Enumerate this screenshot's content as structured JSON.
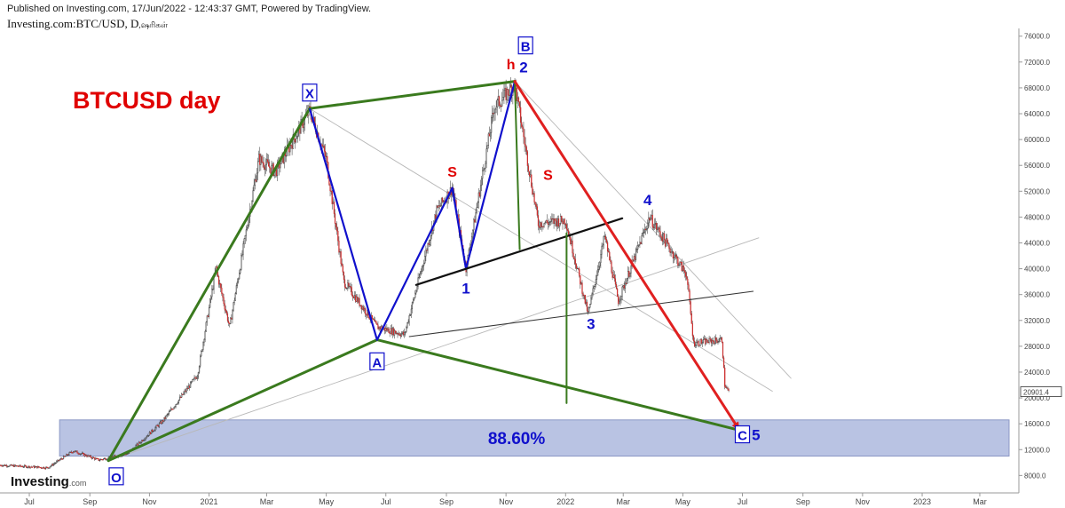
{
  "header": {
    "published": "Published on Investing.com, 17/Jun/2022 - 12:43:37 GMT, Powered by TradingView.",
    "symbol": "Investing.com:BTC/USD, D",
    "symbol_suffix": ",ஷரிகள்"
  },
  "branding": {
    "logo_text": "Investing",
    "logo_suffix": ".com"
  },
  "colors": {
    "harmonic": "#3a7a1e",
    "wave": "#1010cc",
    "title": "#e00000",
    "drop_line": "#e02020",
    "neckline": "#111111",
    "zone_fill": "#b9c3e3",
    "candle_up": "#2a8a3a",
    "candle_down": "#cc2a2a"
  },
  "chart_data": {
    "type": "candlestick",
    "title": "BTCUSD day",
    "last_price_label": "20901.4",
    "x_tick_labels": [
      "Jul",
      "Sep",
      "Nov",
      "2021",
      "Mar",
      "May",
      "Jul",
      "Sep",
      "Nov",
      "2022",
      "Mar",
      "May",
      "Jul",
      "Sep",
      "Nov",
      "2023",
      "Mar"
    ],
    "y_tick_labels": [
      "76000.0",
      "72000.0",
      "68000.0",
      "64000.0",
      "60000.0",
      "56000.0",
      "52000.0",
      "48000.0",
      "44000.0",
      "40000.0",
      "36000.0",
      "32000.0",
      "28000.0",
      "24000.0",
      "20000.0",
      "16000.0",
      "12000.0",
      "8000.0"
    ],
    "y_ticks": [
      76000,
      72000,
      68000,
      64000,
      60000,
      56000,
      52000,
      48000,
      44000,
      40000,
      36000,
      32000,
      28000,
      24000,
      20000,
      16000,
      12000,
      8000
    ],
    "ylim": [
      5300,
      77200
    ],
    "x_start": "2020-06-01",
    "x_end": "2023-04-10",
    "price_path": [
      [
        "2020-06-01",
        9600
      ],
      [
        "2020-07-20",
        9200
      ],
      [
        "2020-08-15",
        11800
      ],
      [
        "2020-09-10",
        10400
      ],
      [
        "2020-10-10",
        11400
      ],
      [
        "2020-11-15",
        16500
      ],
      [
        "2020-12-20",
        23500
      ],
      [
        "2021-01-08",
        40000
      ],
      [
        "2021-01-22",
        31000
      ],
      [
        "2021-02-21",
        57000
      ],
      [
        "2021-03-10",
        55000
      ],
      [
        "2021-04-14",
        64500
      ],
      [
        "2021-05-01",
        57000
      ],
      [
        "2021-05-19",
        38000
      ],
      [
        "2021-06-22",
        31000
      ],
      [
        "2021-07-20",
        29800
      ],
      [
        "2021-08-22",
        49000
      ],
      [
        "2021-09-07",
        52500
      ],
      [
        "2021-09-21",
        40000
      ],
      [
        "2021-10-20",
        65000
      ],
      [
        "2021-11-10",
        68500
      ],
      [
        "2021-12-04",
        47000
      ],
      [
        "2022-01-01",
        47500
      ],
      [
        "2022-01-24",
        33000
      ],
      [
        "2022-02-10",
        45000
      ],
      [
        "2022-02-24",
        35000
      ],
      [
        "2022-03-28",
        48000
      ],
      [
        "2022-05-05",
        39000
      ],
      [
        "2022-05-12",
        28500
      ],
      [
        "2022-06-10",
        29000
      ],
      [
        "2022-06-13",
        22000
      ],
      [
        "2022-06-17",
        20900
      ]
    ],
    "zone": {
      "label": "88.60%",
      "y_range": [
        11000,
        16600
      ],
      "x_range": [
        "2020-08-01",
        "2023-03-31"
      ]
    },
    "pattern_points": {
      "O": [
        "2020-09-20",
        10300
      ],
      "X": [
        "2021-04-14",
        64800
      ],
      "A": [
        "2021-06-22",
        29000
      ],
      "B": [
        "2021-11-10",
        69000
      ],
      "C": [
        "2022-06-28",
        15000
      ]
    },
    "wave_path": [
      [
        "2021-04-14",
        64800
      ],
      [
        "2021-06-22",
        29000
      ],
      [
        "2021-09-07",
        52500
      ],
      [
        "2021-09-21",
        40000
      ],
      [
        "2021-11-10",
        69000
      ]
    ],
    "neckline_upper": [
      [
        "2021-08-01",
        37500
      ],
      [
        "2022-02-28",
        47800
      ]
    ],
    "neckline_lower": [
      [
        "2021-07-25",
        29500
      ],
      [
        "2022-07-12",
        36500
      ]
    ],
    "drop_line": [
      [
        "2021-11-10",
        69000
      ],
      [
        "2022-06-28",
        15000
      ]
    ],
    "green_verticals": [
      [
        [
          "2021-11-10",
          69000
        ],
        [
          "2021-11-15",
          43000
        ]
      ],
      [
        [
          "2022-01-02",
          45500
        ],
        [
          "2022-01-02",
          19200
        ]
      ]
    ],
    "thin_lines": [
      [
        [
          "2020-09-20",
          10300
        ],
        [
          "2022-07-18",
          44800
        ]
      ],
      [
        [
          "2021-04-14",
          64800
        ],
        [
          "2022-08-01",
          21000
        ]
      ],
      [
        [
          "2021-11-10",
          69000
        ],
        [
          "2022-08-20",
          23000
        ]
      ]
    ],
    "labels": [
      {
        "text": "X",
        "at": [
          "2021-04-14",
          67200
        ],
        "boxed": true
      },
      {
        "text": "A",
        "at": [
          "2021-06-22",
          25600
        ],
        "boxed": true
      },
      {
        "text": "B",
        "at": [
          "2021-11-21",
          74500
        ],
        "boxed": true
      },
      {
        "text": "C",
        "at": [
          "2022-07-01",
          14300
        ],
        "boxed": true
      },
      {
        "text": "O",
        "at": [
          "2020-09-28",
          7800
        ],
        "boxed": true
      },
      {
        "text": "1",
        "at": [
          "2021-09-21",
          37000
        ],
        "boxed": false
      },
      {
        "text": "2",
        "at": [
          "2021-11-19",
          71200
        ],
        "boxed": false
      },
      {
        "text": "3",
        "at": [
          "2022-01-27",
          31500
        ],
        "boxed": false
      },
      {
        "text": "4",
        "at": [
          "2022-03-26",
          50700
        ],
        "boxed": false
      },
      {
        "text": "5",
        "at": [
          "2022-07-15",
          14300
        ],
        "boxed": false
      }
    ],
    "red_labels": [
      {
        "text": "h",
        "at": [
          "2021-11-06",
          71700
        ]
      },
      {
        "text": "S",
        "at": [
          "2021-09-07",
          55100
        ]
      },
      {
        "text": "S",
        "at": [
          "2021-12-14",
          54600
        ]
      }
    ]
  }
}
